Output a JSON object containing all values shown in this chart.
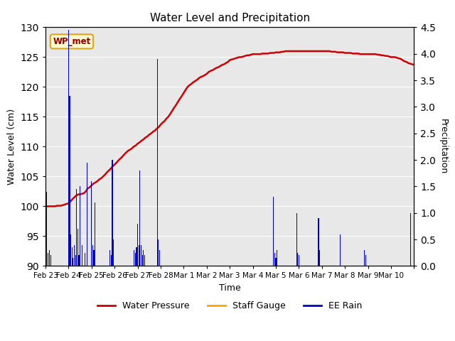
{
  "title": "Water Level and Precipitation",
  "xlabel": "Time",
  "ylabel_left": "Water Level (cm)",
  "ylabel_right": "Precipitation",
  "annotation_text": "WP_met",
  "annotation_color": "#8B0000",
  "annotation_bg": "#FFFACD",
  "annotation_border": "#DAA520",
  "background_color": "#E8E8E8",
  "ylim_left": [
    90,
    130
  ],
  "ylim_right": [
    0.0,
    4.5
  ],
  "yticks_left": [
    90,
    95,
    100,
    105,
    110,
    115,
    120,
    125,
    130
  ],
  "yticks_right": [
    0.0,
    0.5,
    1.0,
    1.5,
    2.0,
    2.5,
    3.0,
    3.5,
    4.0,
    4.5
  ],
  "water_pressure_color": "#CC0000",
  "staff_gauge_color": "#FFA500",
  "ee_rain_color": "#0000CC",
  "legend_items": [
    "Water Pressure",
    "Staff Gauge",
    "EE Rain"
  ],
  "water_pressure_x": [
    0.0,
    0.08,
    0.17,
    0.25,
    0.33,
    0.42,
    0.5,
    0.58,
    0.67,
    0.75,
    0.83,
    0.92,
    1.0,
    1.08,
    1.17,
    1.25,
    1.33,
    1.42,
    1.5,
    1.58,
    1.67,
    1.75,
    1.83,
    1.92,
    2.0,
    2.08,
    2.17,
    2.25,
    2.33,
    2.42,
    2.5,
    2.58,
    2.67,
    2.75,
    2.83,
    2.92,
    3.0,
    3.08,
    3.17,
    3.25,
    3.33,
    3.42,
    3.5,
    3.58,
    3.67,
    3.75,
    3.83,
    3.92,
    4.0,
    4.08,
    4.17,
    4.25,
    4.33,
    4.42,
    4.5,
    4.58,
    4.67,
    4.75,
    4.83,
    4.92,
    5.0,
    5.08,
    5.17,
    5.25,
    5.33,
    5.42,
    5.5,
    5.58,
    5.67,
    5.75,
    5.83,
    5.92,
    6.0,
    6.08,
    6.17,
    6.25,
    6.33,
    6.42,
    6.5,
    6.58,
    6.67,
    6.75,
    6.83,
    6.92,
    7.0,
    7.08,
    7.17,
    7.25,
    7.33,
    7.42,
    7.5,
    7.58,
    7.67,
    7.75,
    7.83,
    7.92,
    8.0,
    8.08,
    8.17,
    8.25,
    8.33,
    8.42,
    8.5,
    8.58,
    8.67,
    8.75,
    8.83,
    8.92,
    9.0,
    9.08,
    9.17,
    9.25,
    9.33,
    9.42,
    9.5,
    9.58,
    9.67,
    9.75,
    9.83,
    9.92,
    10.0,
    10.08,
    10.17,
    10.25,
    10.33,
    10.42,
    10.5,
    10.58,
    10.67,
    10.75,
    10.83,
    10.92,
    11.0,
    11.08,
    11.17,
    11.25,
    11.33,
    11.42,
    11.5,
    11.58,
    11.67,
    11.75,
    11.83,
    11.92,
    12.0,
    12.08,
    12.17,
    12.25,
    12.33,
    12.42,
    12.5,
    12.58,
    12.67,
    12.75,
    12.83,
    12.92,
    13.0,
    13.08,
    13.17,
    13.25,
    13.33,
    13.42,
    13.5,
    13.58,
    13.67,
    13.75,
    13.83,
    13.92,
    14.0,
    14.08,
    14.17,
    14.25,
    14.33,
    14.42,
    14.5,
    14.58,
    14.67,
    14.75,
    14.83,
    14.92,
    15.0,
    15.08,
    15.17,
    15.25,
    15.33,
    15.42,
    15.5,
    15.58,
    15.67,
    15.75,
    15.83,
    15.92,
    16.0
  ],
  "water_pressure_y": [
    100.0,
    100.0,
    100.0,
    100.0,
    100.0,
    100.0,
    100.1,
    100.1,
    100.1,
    100.2,
    100.3,
    100.4,
    100.5,
    100.8,
    101.2,
    101.5,
    101.8,
    102.0,
    102.0,
    102.1,
    102.2,
    102.5,
    103.0,
    103.2,
    103.5,
    103.8,
    104.0,
    104.2,
    104.5,
    104.7,
    105.0,
    105.3,
    105.7,
    106.0,
    106.3,
    106.7,
    107.0,
    107.3,
    107.7,
    108.0,
    108.3,
    108.7,
    109.0,
    109.3,
    109.5,
    109.7,
    110.0,
    110.2,
    110.5,
    110.7,
    111.0,
    111.2,
    111.5,
    111.7,
    112.0,
    112.2,
    112.5,
    112.7,
    113.0,
    113.3,
    113.7,
    114.0,
    114.3,
    114.7,
    115.0,
    115.5,
    116.0,
    116.5,
    117.0,
    117.5,
    118.0,
    118.5,
    119.0,
    119.5,
    120.0,
    120.3,
    120.5,
    120.8,
    121.0,
    121.2,
    121.5,
    121.7,
    121.8,
    122.0,
    122.2,
    122.5,
    122.7,
    122.8,
    123.0,
    123.2,
    123.3,
    123.5,
    123.7,
    123.8,
    124.0,
    124.2,
    124.5,
    124.6,
    124.7,
    124.8,
    124.9,
    125.0,
    125.0,
    125.1,
    125.2,
    125.3,
    125.3,
    125.4,
    125.5,
    125.5,
    125.5,
    125.5,
    125.5,
    125.6,
    125.6,
    125.6,
    125.6,
    125.7,
    125.7,
    125.7,
    125.8,
    125.8,
    125.8,
    125.9,
    125.9,
    126.0,
    126.0,
    126.0,
    126.0,
    126.0,
    126.0,
    126.0,
    126.0,
    126.0,
    126.0,
    126.0,
    126.0,
    126.0,
    126.0,
    126.0,
    126.0,
    126.0,
    126.0,
    126.0,
    126.0,
    126.0,
    126.0,
    126.0,
    126.0,
    125.9,
    125.9,
    125.9,
    125.8,
    125.8,
    125.8,
    125.8,
    125.7,
    125.7,
    125.7,
    125.7,
    125.6,
    125.6,
    125.6,
    125.6,
    125.5,
    125.5,
    125.5,
    125.5,
    125.5,
    125.5,
    125.5,
    125.5,
    125.5,
    125.4,
    125.4,
    125.3,
    125.3,
    125.2,
    125.2,
    125.1,
    125.0,
    125.0,
    125.0,
    124.9,
    124.8,
    124.7,
    124.5,
    124.3,
    124.2,
    124.0,
    123.9,
    123.8,
    123.7
  ],
  "rain_x": [
    0.05,
    0.12,
    0.18,
    0.24,
    1.0,
    1.05,
    1.1,
    1.15,
    1.2,
    1.25,
    1.3,
    1.35,
    1.4,
    1.45,
    1.5,
    1.6,
    1.7,
    1.8,
    2.0,
    2.05,
    2.1,
    2.15,
    2.8,
    2.85,
    2.9,
    2.95,
    3.85,
    3.9,
    3.95,
    4.0,
    4.05,
    4.1,
    4.15,
    4.2,
    4.25,
    4.3,
    4.85,
    4.9,
    4.95,
    9.9,
    9.95,
    10.0,
    10.05,
    10.9,
    10.95,
    11.0,
    11.85,
    11.9,
    12.8,
    13.85,
    13.9,
    15.85
  ],
  "rain_y": [
    1.4,
    0.25,
    0.3,
    0.2,
    4.45,
    3.2,
    0.6,
    0.35,
    0.15,
    0.4,
    0.2,
    1.45,
    0.7,
    0.2,
    1.5,
    0.4,
    0.25,
    1.95,
    1.6,
    0.4,
    0.3,
    1.2,
    0.3,
    0.2,
    2.0,
    0.5,
    0.3,
    0.25,
    0.35,
    0.8,
    0.4,
    1.8,
    0.4,
    0.2,
    0.3,
    0.2,
    3.9,
    0.5,
    0.3,
    1.3,
    0.25,
    0.15,
    0.3,
    1.0,
    0.25,
    0.2,
    0.9,
    0.3,
    0.6,
    0.3,
    0.2,
    1.0
  ],
  "xlim": [
    0,
    16
  ],
  "xtick_positions": [
    0,
    1,
    2,
    3,
    4,
    5,
    6,
    7,
    8,
    9,
    10,
    11,
    12,
    13,
    14,
    15,
    16
  ],
  "xtick_labels": [
    "Feb 23",
    "Feb 24",
    "Feb 25",
    "Feb 26",
    "Feb 27",
    "Feb 28",
    "Mar 1",
    "Mar 2",
    "Mar 3",
    "Mar 4",
    "Mar 5",
    "Mar 6",
    "Mar 7",
    "Mar 8",
    "Mar 9",
    "Mar 10",
    ""
  ]
}
